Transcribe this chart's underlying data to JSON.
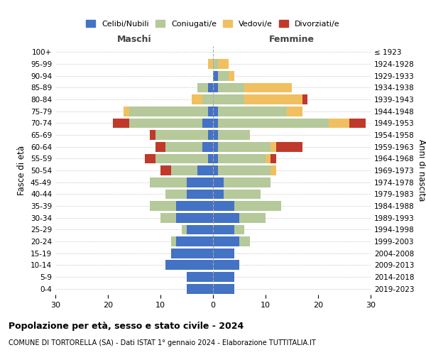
{
  "age_groups": [
    "100+",
    "95-99",
    "90-94",
    "85-89",
    "80-84",
    "75-79",
    "70-74",
    "65-69",
    "60-64",
    "55-59",
    "50-54",
    "45-49",
    "40-44",
    "35-39",
    "30-34",
    "25-29",
    "20-24",
    "15-19",
    "10-14",
    "5-9",
    "0-4"
  ],
  "birth_years": [
    "≤ 1923",
    "1924-1928",
    "1929-1933",
    "1934-1938",
    "1939-1943",
    "1944-1948",
    "1949-1953",
    "1954-1958",
    "1959-1963",
    "1964-1968",
    "1969-1973",
    "1974-1978",
    "1979-1983",
    "1984-1988",
    "1989-1993",
    "1994-1998",
    "1999-2003",
    "2004-2008",
    "2009-2013",
    "2014-2018",
    "2019-2023"
  ],
  "colors": {
    "celibi": "#4472c4",
    "coniugati": "#b5c99a",
    "vedovi": "#f0c060",
    "divorziati": "#c0392b"
  },
  "males": {
    "celibi": [
      0,
      0,
      0,
      1,
      0,
      1,
      2,
      1,
      2,
      1,
      3,
      5,
      5,
      7,
      7,
      5,
      7,
      8,
      9,
      5,
      5
    ],
    "coniugati": [
      0,
      0,
      0,
      2,
      2,
      15,
      14,
      10,
      7,
      10,
      5,
      7,
      4,
      5,
      3,
      1,
      1,
      0,
      0,
      0,
      0
    ],
    "vedovi": [
      0,
      1,
      0,
      0,
      2,
      1,
      0,
      0,
      0,
      0,
      0,
      0,
      0,
      0,
      0,
      0,
      0,
      0,
      0,
      0,
      0
    ],
    "divorziati": [
      0,
      0,
      0,
      0,
      0,
      0,
      3,
      1,
      2,
      2,
      2,
      0,
      0,
      0,
      0,
      0,
      0,
      0,
      0,
      0,
      0
    ]
  },
  "females": {
    "celibi": [
      0,
      0,
      1,
      1,
      0,
      1,
      1,
      1,
      1,
      1,
      1,
      2,
      2,
      4,
      5,
      4,
      5,
      4,
      5,
      4,
      4
    ],
    "coniugati": [
      0,
      1,
      2,
      5,
      6,
      13,
      21,
      6,
      10,
      9,
      10,
      9,
      7,
      9,
      5,
      2,
      2,
      0,
      0,
      0,
      0
    ],
    "vedovi": [
      0,
      2,
      1,
      9,
      11,
      3,
      4,
      0,
      1,
      1,
      1,
      0,
      0,
      0,
      0,
      0,
      0,
      0,
      0,
      0,
      0
    ],
    "divorziati": [
      0,
      0,
      0,
      0,
      1,
      0,
      3,
      0,
      5,
      1,
      0,
      0,
      0,
      0,
      0,
      0,
      0,
      0,
      0,
      0,
      0
    ]
  },
  "xlim": 30,
  "title": "Popolazione per età, sesso e stato civile - 2024",
  "subtitle": "COMUNE DI TORTORELLA (SA) - Dati ISTAT 1° gennaio 2024 - Elaborazione TUTTITALIA.IT",
  "ylabel_left": "Fasce di età",
  "ylabel_right": "Anni di nascita",
  "xlabel_left": "Maschi",
  "xlabel_right": "Femmine",
  "background_color": "#ffffff",
  "grid_color": "#cccccc"
}
